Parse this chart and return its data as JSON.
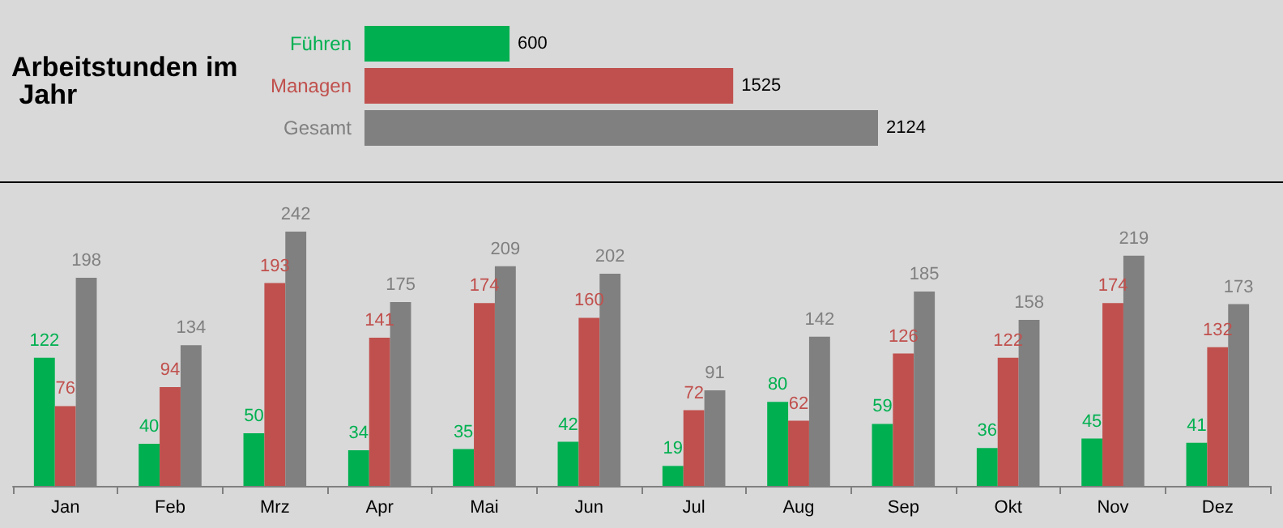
{
  "chart_data": [
    {
      "type": "bar",
      "orientation": "horizontal",
      "title": "Arbeitstunden im Jahr",
      "categories": [
        "Führen",
        "Managen",
        "Gesamt"
      ],
      "values": [
        600,
        1525,
        2124
      ],
      "colors": [
        "#00b050",
        "#c0504d",
        "#808080"
      ],
      "data_labels": true
    },
    {
      "type": "bar",
      "categories": [
        "Jan",
        "Feb",
        "Mrz",
        "Apr",
        "Mai",
        "Jun",
        "Jul",
        "Aug",
        "Sep",
        "Okt",
        "Nov",
        "Dez"
      ],
      "data_labels": true,
      "series": [
        {
          "color": "#00b050",
          "values": [
            122,
            40,
            50,
            34,
            35,
            42,
            19,
            80,
            59,
            36,
            45,
            41
          ]
        },
        {
          "color": "#c0504d",
          "values": [
            76,
            94,
            193,
            141,
            174,
            160,
            72,
            62,
            126,
            122,
            174,
            132
          ]
        },
        {
          "color": "#808080",
          "values": [
            198,
            134,
            242,
            175,
            209,
            202,
            91,
            142,
            185,
            158,
            219,
            173
          ]
        }
      ]
    }
  ]
}
